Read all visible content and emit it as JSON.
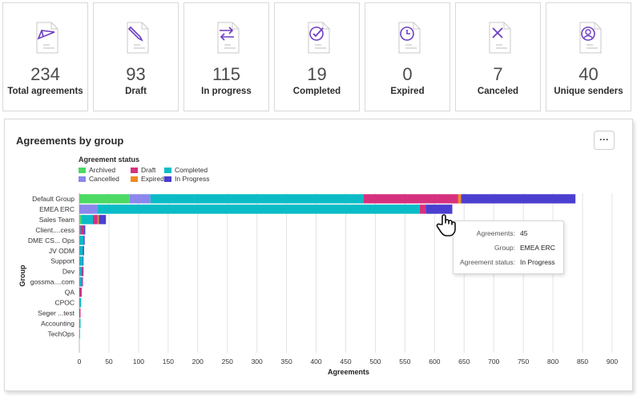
{
  "cards": [
    {
      "icon": "send-icon",
      "value": "234",
      "label": "Total agreements"
    },
    {
      "icon": "draft-pen-icon",
      "value": "93",
      "label": "Draft"
    },
    {
      "icon": "in-progress-arrows-icon",
      "value": "115",
      "label": "In progress"
    },
    {
      "icon": "completed-check-icon",
      "value": "19",
      "label": "Completed"
    },
    {
      "icon": "expired-clock-icon",
      "value": "0",
      "label": "Expired"
    },
    {
      "icon": "canceled-x-icon",
      "value": "7",
      "label": "Canceled"
    },
    {
      "icon": "unique-senders-user-icon",
      "value": "40",
      "label": "Unique senders"
    }
  ],
  "panel": {
    "title": "Agreements by group",
    "more_label": "···"
  },
  "colors": {
    "Archived": "#4cd964",
    "Draft": "#d6317f",
    "Completed": "#0bbcc6",
    "Cancelled": "#8c87ec",
    "Expired": "#f08a24",
    "In Progress": "#4b3fcf",
    "accent_icon": "#6e3fc0"
  },
  "chart_data": {
    "type": "bar",
    "orientation": "horizontal",
    "stacked": true,
    "title": "Agreements by group",
    "legend_title": "Agreement status",
    "legend_placement": "top-left",
    "xlabel": "Agreements",
    "ylabel": "Group",
    "xlim": [
      0,
      900
    ],
    "xticks": [
      0,
      50,
      100,
      150,
      200,
      250,
      300,
      350,
      400,
      450,
      500,
      550,
      600,
      650,
      700,
      750,
      800,
      850,
      900
    ],
    "grid": true,
    "categories": [
      "Default Group",
      "EMEA ERC",
      "Sales Team",
      "Client....cess",
      "DME CS... Ops",
      "JV ODM",
      "Support",
      "Dev",
      "gossma....com",
      "QA",
      "CPOC",
      "Seger ...test",
      "Accounting",
      "TechOps"
    ],
    "series": [
      {
        "name": "Archived",
        "values": [
          85,
          0,
          3,
          0,
          0,
          0,
          0,
          0,
          0,
          0,
          0,
          0,
          0,
          0
        ]
      },
      {
        "name": "Cancelled",
        "values": [
          35,
          30,
          0,
          0,
          0,
          0,
          0,
          0,
          0,
          0,
          0,
          0,
          0,
          0
        ]
      },
      {
        "name": "Completed",
        "values": [
          360,
          545,
          20,
          2,
          7,
          6,
          6,
          3,
          3,
          0,
          3,
          0,
          2,
          1
        ]
      },
      {
        "name": "Draft",
        "values": [
          160,
          10,
          8,
          5,
          0,
          0,
          0,
          3,
          2,
          3,
          0,
          2,
          0,
          0
        ]
      },
      {
        "name": "Expired",
        "values": [
          5,
          0,
          2,
          0,
          0,
          0,
          0,
          0,
          0,
          0,
          0,
          0,
          0,
          0
        ]
      },
      {
        "name": "In Progress",
        "values": [
          193,
          45,
          12,
          3,
          2,
          2,
          1,
          1,
          1,
          1,
          0,
          0,
          0,
          0
        ]
      }
    ],
    "legend": [
      "Archived",
      "Draft",
      "Completed",
      "Cancelled",
      "Expired",
      "In Progress"
    ]
  },
  "tooltip": {
    "rows": [
      {
        "key": "Agreements:",
        "value": "45"
      },
      {
        "key": "Group:",
        "value": "EMEA ERC"
      },
      {
        "key": "Agreement status:",
        "value": "In Progress"
      }
    ]
  }
}
